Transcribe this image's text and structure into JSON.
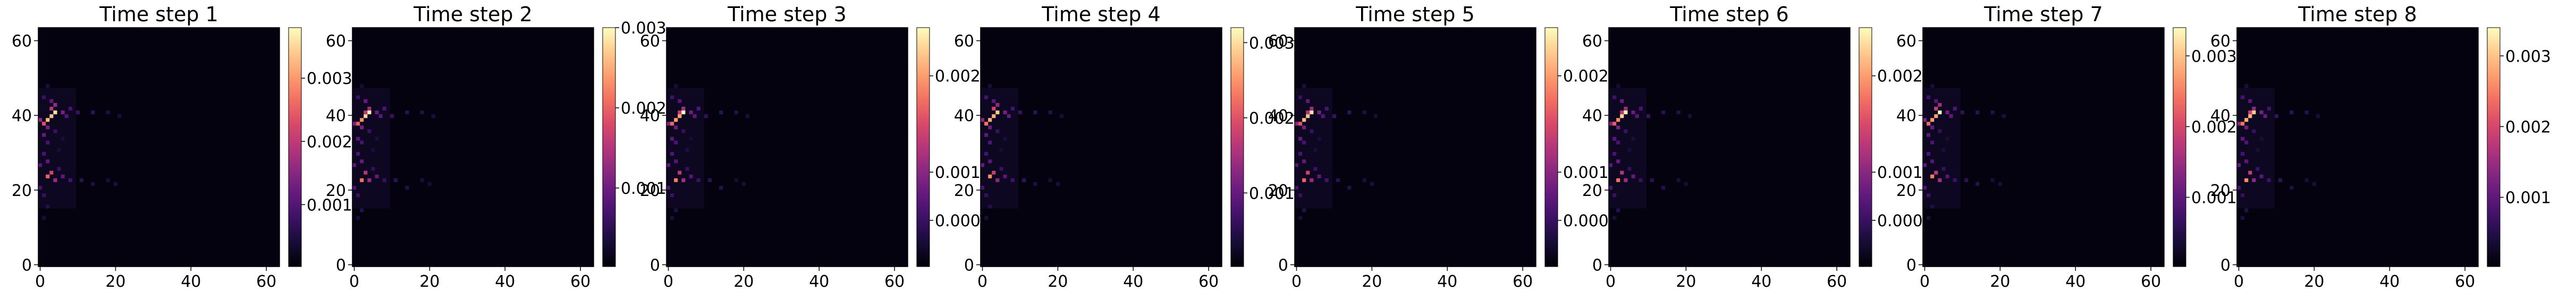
{
  "chart_data": [
    {
      "type": "heatmap",
      "title": "Time step 1",
      "x_ticks": [
        "0",
        "20",
        "40",
        "60"
      ],
      "y_ticks": [
        "0",
        "20",
        "40",
        "60"
      ],
      "xlim": [
        -0.5,
        63.5
      ],
      "ylim": [
        63.5,
        -0.5
      ],
      "colormap": "magma",
      "colorbar_ticks": [
        "0.001",
        "0.002",
        "0.003"
      ],
      "colorbar_tick_values": [
        0.001,
        0.002,
        0.003
      ],
      "color_range": [
        2e-05,
        0.0038
      ]
    },
    {
      "type": "heatmap",
      "title": "Time step 2",
      "x_ticks": [
        "0",
        "20",
        "40",
        "60"
      ],
      "y_ticks": [
        "0",
        "20",
        "40",
        "60"
      ],
      "xlim": [
        -0.5,
        63.5
      ],
      "ylim": [
        63.5,
        -0.5
      ],
      "colormap": "magma",
      "colorbar_ticks": [
        "0.001",
        "0.002",
        "0.003"
      ],
      "colorbar_tick_values": [
        0.001,
        0.002,
        0.003
      ],
      "color_range": [
        2e-05,
        0.003
      ]
    },
    {
      "type": "heatmap",
      "title": "Time step 3",
      "x_ticks": [
        "0",
        "20",
        "40",
        "60"
      ],
      "y_ticks": [
        "0",
        "20",
        "40",
        "60"
      ],
      "xlim": [
        -0.5,
        63.5
      ],
      "ylim": [
        63.5,
        -0.5
      ],
      "colormap": "magma",
      "colorbar_ticks": [
        "0.000",
        "0.001",
        "0.002"
      ],
      "colorbar_tick_values": [
        0.0005,
        0.001,
        0.002
      ],
      "color_range": [
        2e-05,
        0.0025
      ]
    },
    {
      "type": "heatmap",
      "title": "Time step 4",
      "x_ticks": [
        "0",
        "20",
        "40",
        "60"
      ],
      "y_ticks": [
        "0",
        "20",
        "40",
        "60"
      ],
      "xlim": [
        -0.5,
        63.5
      ],
      "ylim": [
        63.5,
        -0.5
      ],
      "colormap": "magma",
      "colorbar_ticks": [
        "0.001",
        "0.002",
        "0.003"
      ],
      "colorbar_tick_values": [
        0.001,
        0.002,
        0.003
      ],
      "color_range": [
        2e-05,
        0.0032
      ]
    },
    {
      "type": "heatmap",
      "title": "Time step 5",
      "x_ticks": [
        "0",
        "20",
        "40",
        "60"
      ],
      "y_ticks": [
        "0",
        "20",
        "40",
        "60"
      ],
      "xlim": [
        -0.5,
        63.5
      ],
      "ylim": [
        63.5,
        -0.5
      ],
      "colormap": "magma",
      "colorbar_ticks": [
        "0.000",
        "0.001",
        "0.002"
      ],
      "colorbar_tick_values": [
        0.0005,
        0.001,
        0.002
      ],
      "color_range": [
        2e-05,
        0.0025
      ]
    },
    {
      "type": "heatmap",
      "title": "Time step 6",
      "x_ticks": [
        "0",
        "20",
        "40",
        "60"
      ],
      "y_ticks": [
        "0",
        "20",
        "40",
        "60"
      ],
      "xlim": [
        -0.5,
        63.5
      ],
      "ylim": [
        63.5,
        -0.5
      ],
      "colormap": "magma",
      "colorbar_ticks": [
        "0.000",
        "0.001",
        "0.002"
      ],
      "colorbar_tick_values": [
        0.0005,
        0.001,
        0.002
      ],
      "color_range": [
        2e-05,
        0.0025
      ]
    },
    {
      "type": "heatmap",
      "title": "Time step 7",
      "x_ticks": [
        "0",
        "20",
        "40",
        "60"
      ],
      "y_ticks": [
        "0",
        "20",
        "40",
        "60"
      ],
      "xlim": [
        -0.5,
        63.5
      ],
      "ylim": [
        63.5,
        -0.5
      ],
      "colormap": "magma",
      "colorbar_ticks": [
        "0.001",
        "0.002",
        "0.003"
      ],
      "colorbar_tick_values": [
        0.001,
        0.002,
        0.003
      ],
      "color_range": [
        2e-05,
        0.0034
      ]
    },
    {
      "type": "heatmap",
      "title": "Time step 8",
      "x_ticks": [
        "0",
        "20",
        "40",
        "60"
      ],
      "y_ticks": [
        "0",
        "20",
        "40",
        "60"
      ],
      "xlim": [
        -0.5,
        63.5
      ],
      "ylim": [
        63.5,
        -0.5
      ],
      "colormap": "magma",
      "colorbar_ticks": [
        "0.001",
        "0.002",
        "0.003"
      ],
      "colorbar_tick_values": [
        0.001,
        0.002,
        0.003
      ],
      "color_range": [
        2e-05,
        0.0034
      ]
    }
  ]
}
